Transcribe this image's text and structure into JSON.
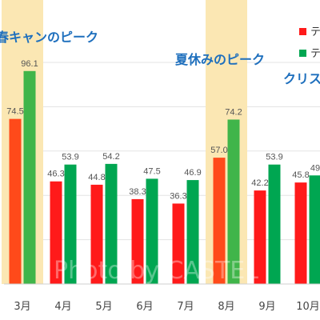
{
  "chart_data": {
    "type": "bar",
    "categories": [
      "3月",
      "4月",
      "5月",
      "6月",
      "7月",
      "8月",
      "9月",
      "10月"
    ],
    "series": [
      {
        "values": [
          74.5,
          46.3,
          44.8,
          38.3,
          36.3,
          57.0,
          42.2,
          45.8
        ],
        "value_labels": [
          "74.5",
          "46.3",
          "44.8",
          "38.3",
          "36.3",
          "57.0",
          "42.2",
          "45.8"
        ],
        "color": "#ff1a1a",
        "highlight_color": "#ff4a1a"
      },
      {
        "values": [
          96.1,
          53.9,
          54.2,
          47.5,
          46.9,
          74.2,
          53.9,
          49.0
        ],
        "value_labels": [
          "96.1",
          "53.9",
          "54.2",
          "47.5",
          "46.9",
          "74.2",
          "53.9",
          "49"
        ],
        "color": "#00a651",
        "highlight_color": "#40b54a"
      }
    ],
    "highlight_categories": [
      "3月",
      "8月"
    ],
    "highlight_band_color": "#fbe7b3",
    "annotations": [
      {
        "text": "春キャンのピーク",
        "category": "3月"
      },
      {
        "text": "夏休みのピーク",
        "category": "8月"
      },
      {
        "text": "クリス",
        "category": "10月"
      }
    ],
    "legend": {
      "entries": [
        {
          "text": "テ",
          "color": "#ff1a1a"
        },
        {
          "text": "テ",
          "color": "#00a651"
        }
      ],
      "placement": "top-right"
    },
    "ylim": [
      0,
      115
    ],
    "grid": true,
    "watermark": "Photo by CASTEL"
  }
}
